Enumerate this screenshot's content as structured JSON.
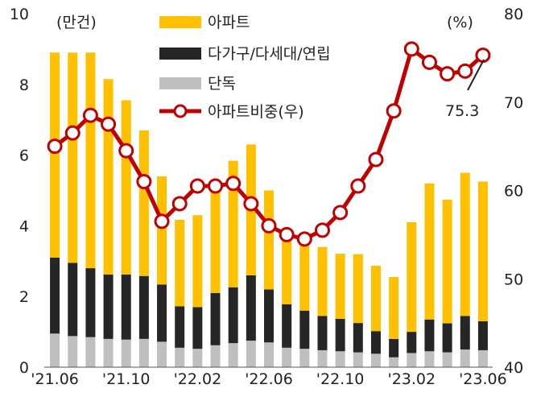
{
  "chart_data": {
    "type": "bar",
    "stacked": true,
    "categories": [
      "'21.06",
      "'21.07",
      "'21.08",
      "'21.09",
      "'21.10",
      "'21.11",
      "'21.12",
      "'22.01",
      "'22.02",
      "'22.03",
      "'22.04",
      "'22.05",
      "'22.06",
      "'22.07",
      "'22.08",
      "'22.09",
      "'22.10",
      "'22.11",
      "'22.12",
      "'23.01",
      "'23.02",
      "'23.03",
      "'23.04",
      "'23.05",
      "'23.06"
    ],
    "xtick_labels": [
      "'21.06",
      "'21.10",
      "'22.02",
      "'22.06",
      "'22.10",
      "'23.02",
      "'23.06"
    ],
    "series": [
      {
        "name": "단독",
        "color": "#bfbfbf",
        "axis": "left",
        "values": [
          0.95,
          0.88,
          0.85,
          0.8,
          0.78,
          0.8,
          0.72,
          0.55,
          0.52,
          0.62,
          0.68,
          0.75,
          0.7,
          0.55,
          0.52,
          0.48,
          0.45,
          0.42,
          0.38,
          0.28,
          0.4,
          0.45,
          0.42,
          0.5,
          0.48
        ]
      },
      {
        "name": "다가구/다세대/연립",
        "color": "#262626",
        "axis": "left",
        "values": [
          2.15,
          2.07,
          1.95,
          1.82,
          1.84,
          1.78,
          1.62,
          1.17,
          1.18,
          1.48,
          1.58,
          1.85,
          1.5,
          1.23,
          1.08,
          0.97,
          0.92,
          0.83,
          0.64,
          0.52,
          0.6,
          0.9,
          0.82,
          0.95,
          0.82
        ]
      },
      {
        "name": "아파트",
        "color": "#ffc000",
        "axis": "left",
        "values": [
          5.8,
          5.95,
          6.1,
          5.53,
          4.93,
          4.12,
          3.06,
          2.45,
          2.6,
          3.2,
          3.58,
          3.7,
          2.8,
          2.12,
          1.95,
          1.95,
          1.84,
          1.95,
          1.85,
          1.75,
          3.1,
          3.85,
          3.5,
          4.05,
          3.95
        ]
      },
      {
        "name": "아파트비중(우)",
        "color": "#c00000",
        "axis": "right",
        "type": "line",
        "values": [
          65.0,
          66.5,
          68.5,
          67.5,
          64.5,
          61.0,
          56.5,
          58.5,
          60.5,
          60.5,
          60.8,
          58.5,
          56.0,
          55.0,
          54.5,
          55.5,
          57.5,
          60.5,
          63.5,
          69.0,
          76.0,
          74.5,
          73.2,
          73.5,
          75.3
        ]
      }
    ],
    "ylabel": "(만건)",
    "ylim": [
      0,
      10
    ],
    "yticks": [
      "0",
      "2",
      "4",
      "6",
      "8",
      "10"
    ],
    "y2label": "(%)",
    "y2lim": [
      40,
      80
    ],
    "y2ticks": [
      "40",
      "50",
      "60",
      "70",
      "80"
    ],
    "annotation": "75.3",
    "legend_position": "top-center",
    "grid": false
  }
}
